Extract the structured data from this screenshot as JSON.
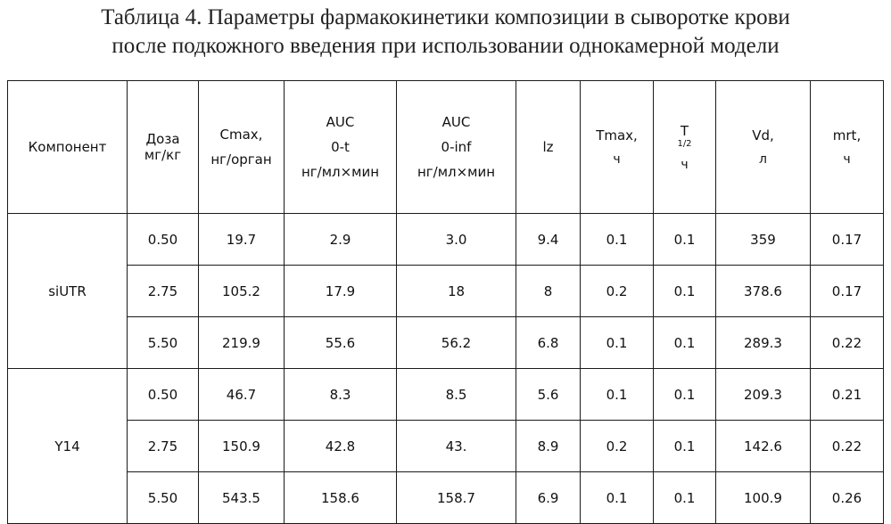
{
  "caption": {
    "line1": "Таблица 4. Параметры фармакокинетики композиции в сыворотке крови",
    "line2": "после подкожного введения при использовании однокамерной модели"
  },
  "headers": {
    "component": "Компонент",
    "dose": [
      "Доза",
      "мг/кг"
    ],
    "cmax": [
      "Cmax,",
      "нг/орган"
    ],
    "auc_t": [
      "AUC",
      "0-t",
      "нг/мл×мин"
    ],
    "auc_inf": [
      "AUC",
      "0-inf",
      "нг/мл×мин"
    ],
    "lz": "lz",
    "tmax": [
      "Tmax,",
      "ч"
    ],
    "thalf": {
      "base": "T",
      "sub": "1/2",
      "unit": "ч"
    },
    "vd": [
      "Vd,",
      "л"
    ],
    "mrt": [
      "mrt,",
      "ч"
    ]
  },
  "groups": [
    {
      "component": "siUTR",
      "rows": [
        {
          "dose": "0.50",
          "cmax": "19.7",
          "auc_t": "2.9",
          "auc_inf": "3.0",
          "lz": "9.4",
          "tmax": "0.1",
          "thalf": "0.1",
          "vd": "359",
          "mrt": "0.17"
        },
        {
          "dose": "2.75",
          "cmax": "105.2",
          "auc_t": "17.9",
          "auc_inf": "18",
          "lz": "8",
          "tmax": "0.2",
          "thalf": "0.1",
          "vd": "378.6",
          "mrt": "0.17"
        },
        {
          "dose": "5.50",
          "cmax": "219.9",
          "auc_t": "55.6",
          "auc_inf": "56.2",
          "lz": "6.8",
          "tmax": "0.1",
          "thalf": "0.1",
          "vd": "289.3",
          "mrt": "0.22"
        }
      ]
    },
    {
      "component": "Y14",
      "rows": [
        {
          "dose": "0.50",
          "cmax": "46.7",
          "auc_t": "8.3",
          "auc_inf": "8.5",
          "lz": "5.6",
          "tmax": "0.1",
          "thalf": "0.1",
          "vd": "209.3",
          "mrt": "0.21"
        },
        {
          "dose": "2.75",
          "cmax": "150.9",
          "auc_t": "42.8",
          "auc_inf": "43.",
          "lz": "8.9",
          "tmax": "0.2",
          "thalf": "0.1",
          "vd": "142.6",
          "mrt": "0.22"
        },
        {
          "dose": "5.50",
          "cmax": "543.5",
          "auc_t": "158.6",
          "auc_inf": "158.7",
          "lz": "6.9",
          "tmax": "0.1",
          "thalf": "0.1",
          "vd": "100.9",
          "mrt": "0.26"
        }
      ]
    }
  ]
}
